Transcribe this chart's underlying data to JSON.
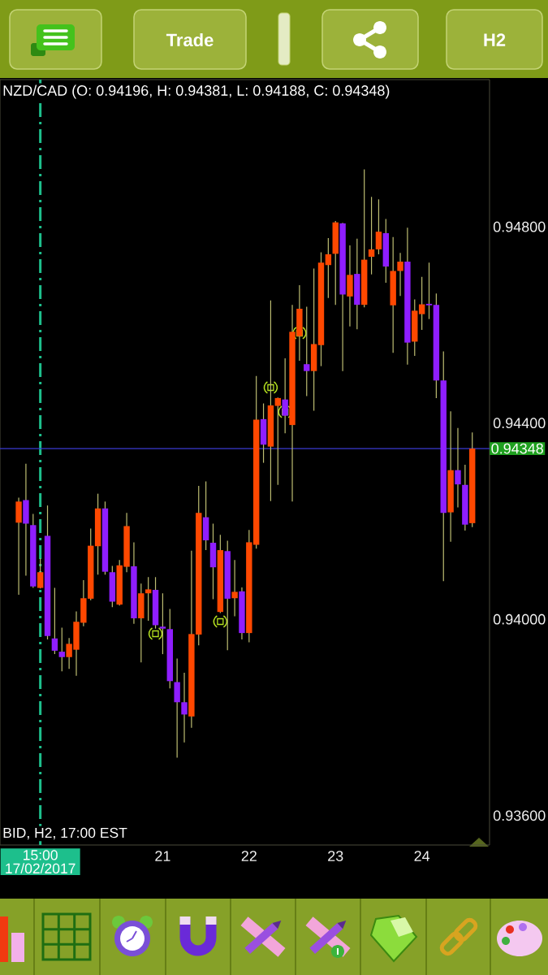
{
  "chart_data": {
    "type": "candlestick",
    "title": "NZD/CAD (O: 0.94196, H: 0.94381, L: 0.94188, C: 0.94348)",
    "subtitle": "BID, H2, 17:00 EST",
    "annotations": [
      "Trade",
      "H2"
    ],
    "categories": [
      null,
      null,
      null,
      "15:00 17/02/2017",
      null,
      null,
      null,
      null,
      null,
      null,
      null,
      null,
      null,
      null,
      null,
      null,
      null,
      null,
      null,
      null,
      "21",
      null,
      null,
      null,
      null,
      null,
      null,
      null,
      null,
      null,
      null,
      null,
      "22",
      null,
      null,
      null,
      null,
      null,
      null,
      null,
      null,
      null,
      null,
      null,
      "23",
      null,
      null,
      null,
      null,
      null,
      null,
      null,
      null,
      null,
      null,
      null,
      "24",
      null,
      null,
      null,
      null,
      null,
      null,
      null
    ],
    "ohlc": [
      [
        0.94197,
        0.94248,
        0.9405,
        0.9424
      ],
      [
        0.94243,
        0.94317,
        0.94089,
        0.94195
      ],
      [
        0.94192,
        0.94215,
        0.94064,
        0.94067
      ],
      [
        0.94064,
        0.94124,
        0.94063,
        0.94096
      ],
      [
        0.9417,
        0.94232,
        0.93959,
        0.93966
      ],
      [
        0.93961,
        0.94064,
        0.93929,
        0.93936
      ],
      [
        0.93934,
        0.93983,
        0.93894,
        0.93923
      ],
      [
        0.93923,
        0.93962,
        0.93899,
        0.9395
      ],
      [
        0.93938,
        0.94016,
        0.93885,
        0.93995
      ],
      [
        0.93993,
        0.9408,
        0.93986,
        0.94043
      ],
      [
        0.94042,
        0.94185,
        0.94039,
        0.9415
      ],
      [
        0.94149,
        0.94256,
        0.94091,
        0.94226
      ],
      [
        0.94226,
        0.9424,
        0.94091,
        0.94097
      ],
      [
        0.94096,
        0.94109,
        0.94025,
        0.94036
      ],
      [
        0.9403,
        0.94121,
        0.94028,
        0.9411
      ],
      [
        0.94107,
        0.94217,
        0.94096,
        0.9419
      ],
      [
        0.94108,
        0.94157,
        0.93991,
        0.94002
      ],
      [
        0.94002,
        0.94073,
        0.93912,
        0.94053
      ],
      [
        0.94053,
        0.94086,
        0.93997,
        0.94061
      ],
      [
        0.9406,
        0.94086,
        0.93981,
        0.93988
      ],
      [
        0.93985,
        0.94053,
        0.93929,
        0.93981
      ],
      [
        0.9398,
        0.94021,
        0.93859,
        0.93874
      ],
      [
        0.93872,
        0.9392,
        0.93718,
        0.93831
      ],
      [
        0.93831,
        0.93891,
        0.93749,
        0.93806
      ],
      [
        0.93802,
        0.9414,
        0.93779,
        0.9397
      ],
      [
        0.93969,
        0.94272,
        0.93947,
        0.94217
      ],
      [
        0.94208,
        0.94281,
        0.94141,
        0.94161
      ],
      [
        0.94156,
        0.94195,
        0.94041,
        0.94106
      ],
      [
        0.94015,
        0.94172,
        0.94013,
        0.94141
      ],
      [
        0.94139,
        0.9416,
        0.93937,
        0.94042
      ],
      [
        0.94043,
        0.94121,
        0.94006,
        0.94056
      ],
      [
        0.94057,
        0.94065,
        0.93959,
        0.93972
      ],
      [
        0.93972,
        0.94182,
        0.93953,
        0.94157
      ],
      [
        0.94152,
        0.94496,
        0.94144,
        0.94407
      ],
      [
        0.94408,
        0.9444,
        0.94319,
        0.94356
      ],
      [
        0.94352,
        0.9465,
        0.94241,
        0.94436
      ],
      [
        0.94435,
        0.94452,
        0.94274,
        0.94451
      ],
      [
        0.94448,
        0.94532,
        0.94379,
        0.94415
      ],
      [
        0.94396,
        0.94641,
        0.9424,
        0.94586
      ],
      [
        0.94577,
        0.94681,
        0.94527,
        0.94633
      ],
      [
        0.9452,
        0.94637,
        0.94455,
        0.94506
      ],
      [
        0.94506,
        0.94715,
        0.94425,
        0.94561
      ],
      [
        0.94559,
        0.94748,
        0.94516,
        0.94727
      ],
      [
        0.94722,
        0.94777,
        0.94655,
        0.94744
      ],
      [
        0.94745,
        0.94812,
        0.94641,
        0.94809
      ],
      [
        0.94807,
        0.94808,
        0.94506,
        0.94662
      ],
      [
        0.94658,
        0.94762,
        0.94597,
        0.94702
      ],
      [
        0.94704,
        0.94776,
        0.94591,
        0.94641
      ],
      [
        0.94641,
        0.94917,
        0.94636,
        0.94733
      ],
      [
        0.94739,
        0.94861,
        0.94703,
        0.94754
      ],
      [
        0.94754,
        0.94856,
        0.94744,
        0.9479
      ],
      [
        0.94787,
        0.94816,
        0.94686,
        0.94719
      ],
      [
        0.9464,
        0.94779,
        0.94543,
        0.9471
      ],
      [
        0.9471,
        0.94747,
        0.94659,
        0.94729
      ],
      [
        0.94729,
        0.94798,
        0.94519,
        0.94564
      ],
      [
        0.94566,
        0.94652,
        0.94537,
        0.94629
      ],
      [
        0.94622,
        0.94698,
        0.9459,
        0.94642
      ],
      [
        0.94643,
        0.94727,
        0.94612,
        0.9464
      ],
      [
        0.94641,
        0.94664,
        0.94451,
        0.94487
      ],
      [
        0.94487,
        0.94546,
        0.94078,
        0.94217
      ],
      [
        0.94218,
        0.94424,
        0.94158,
        0.94304
      ],
      [
        0.94304,
        0.9439,
        0.94228,
        0.94275
      ],
      [
        0.94274,
        0.94315,
        0.94181,
        0.94193
      ],
      [
        0.94196,
        0.94381,
        0.94188,
        0.94348
      ]
    ],
    "colors": [
      "#ff4800",
      "#8f1eff",
      "#8f1eff",
      "#ff4800",
      "#8f1eff",
      "#8f1eff",
      "#8f1eff",
      "#ff4800",
      "#ff4800",
      "#ff4800",
      "#ff4800",
      "#ff4800",
      "#8f1eff",
      "#8f1eff",
      "#ff4800",
      "#ff4800",
      "#8f1eff",
      "#ff4800",
      "#ff4800",
      "#8f1eff",
      "#8f1eff",
      "#8f1eff",
      "#8f1eff",
      "#8f1eff",
      "#ff4800",
      "#ff4800",
      "#8f1eff",
      "#8f1eff",
      "#ff4800",
      "#8f1eff",
      "#ff4800",
      "#8f1eff",
      "#ff4800",
      "#ff4800",
      "#8f1eff",
      "#ff4800",
      "#ff4800",
      "#8f1eff",
      "#ff4800",
      "#ff4800",
      "#8f1eff",
      "#ff4800",
      "#ff4800",
      "#ff4800",
      "#ff4800",
      "#8f1eff",
      "#ff4800",
      "#8f1eff",
      "#ff4800",
      "#ff4800",
      "#ff4800",
      "#8f1eff",
      "#ff4800",
      "#ff4800",
      "#8f1eff",
      "#ff4800",
      "#ff4800",
      "#8f1eff",
      "#8f1eff",
      "#8f1eff",
      "#ff4800",
      "#8f1eff",
      "#8f1eff",
      "#ff4800"
    ],
    "ylim": [
      0.9354,
      0.951
    ],
    "yticks": [
      {
        "value": 0.936,
        "label": "0.93600"
      },
      {
        "value": 0.94,
        "label": "0.94000"
      },
      {
        "value": 0.944,
        "label": "0.94400"
      },
      {
        "value": 0.948,
        "label": "0.94800"
      }
    ],
    "ref_lines": [
      {
        "axis": "x",
        "value": "15:00 17/02/2017",
        "color": "#1dbf8c",
        "line_style": "dashdot"
      },
      {
        "axis": "y",
        "value": 0.94348,
        "label": "0.94348",
        "color": "#3a3ad0",
        "line_style": "solid"
      }
    ]
  }
}
